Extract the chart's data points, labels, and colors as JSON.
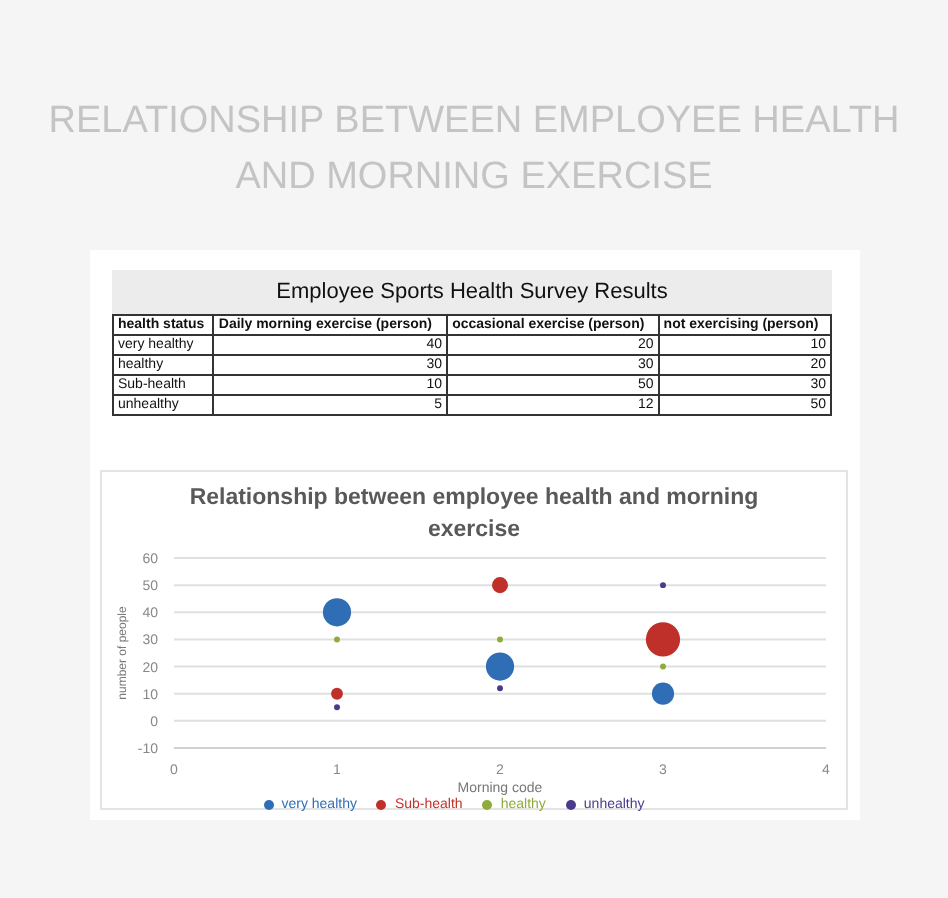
{
  "chart_data": [
    {
      "type": "other",
      "title": "Employee Sports Health Survey Results",
      "ylabel": "health status",
      "categories": [
        "very healthy",
        "healthy",
        "Sub-health",
        "unhealthy"
      ],
      "series": [
        {
          "name": "Daily morning exercise (person)",
          "values": [
            40,
            30,
            10,
            5
          ]
        },
        {
          "name": "occasional exercise (person)",
          "values": [
            20,
            30,
            50,
            12
          ]
        },
        {
          "name": "not exercising (person)",
          "values": [
            10,
            20,
            30,
            50
          ]
        }
      ],
      "data_labels": true
    },
    {
      "type": "bubble",
      "title": "Relationship between employee health and morning exercise",
      "subtitle": "RELATIONSHIP BETWEEN EMPLOYEE HEALTH AND MORNING EXERCISE",
      "xlabel": "Morning code",
      "ylabel": "number of people",
      "x": [
        1,
        2,
        3
      ],
      "series": [
        {
          "name": "very healthy",
          "color": "#2f6db5",
          "values": [
            40,
            20,
            10
          ],
          "sizes": [
            0.68,
            0.68,
            0.42
          ]
        },
        {
          "name": "Sub-health",
          "color": "#c0302a",
          "values": [
            10,
            50,
            30
          ],
          "sizes": [
            0.12,
            0.22,
            1
          ]
        },
        {
          "name": "healthy",
          "color": "#8fab3a",
          "values": [
            30,
            30,
            20
          ],
          "sizes": [
            0.03,
            0.03,
            0.03
          ]
        },
        {
          "name": "unhealthy",
          "color": "#4b3a8c",
          "values": [
            5,
            12,
            50
          ],
          "sizes": [
            0.03,
            0.03,
            0.03
          ]
        }
      ],
      "xlim": [
        0,
        4
      ],
      "xticks": [
        0,
        1,
        2,
        3,
        4
      ],
      "ylim": [
        -10,
        60
      ],
      "yticks": [
        -10,
        0,
        10,
        20,
        30,
        40,
        50,
        60
      ],
      "grid": "y",
      "legend": "bottom",
      "marker": "circle"
    }
  ]
}
